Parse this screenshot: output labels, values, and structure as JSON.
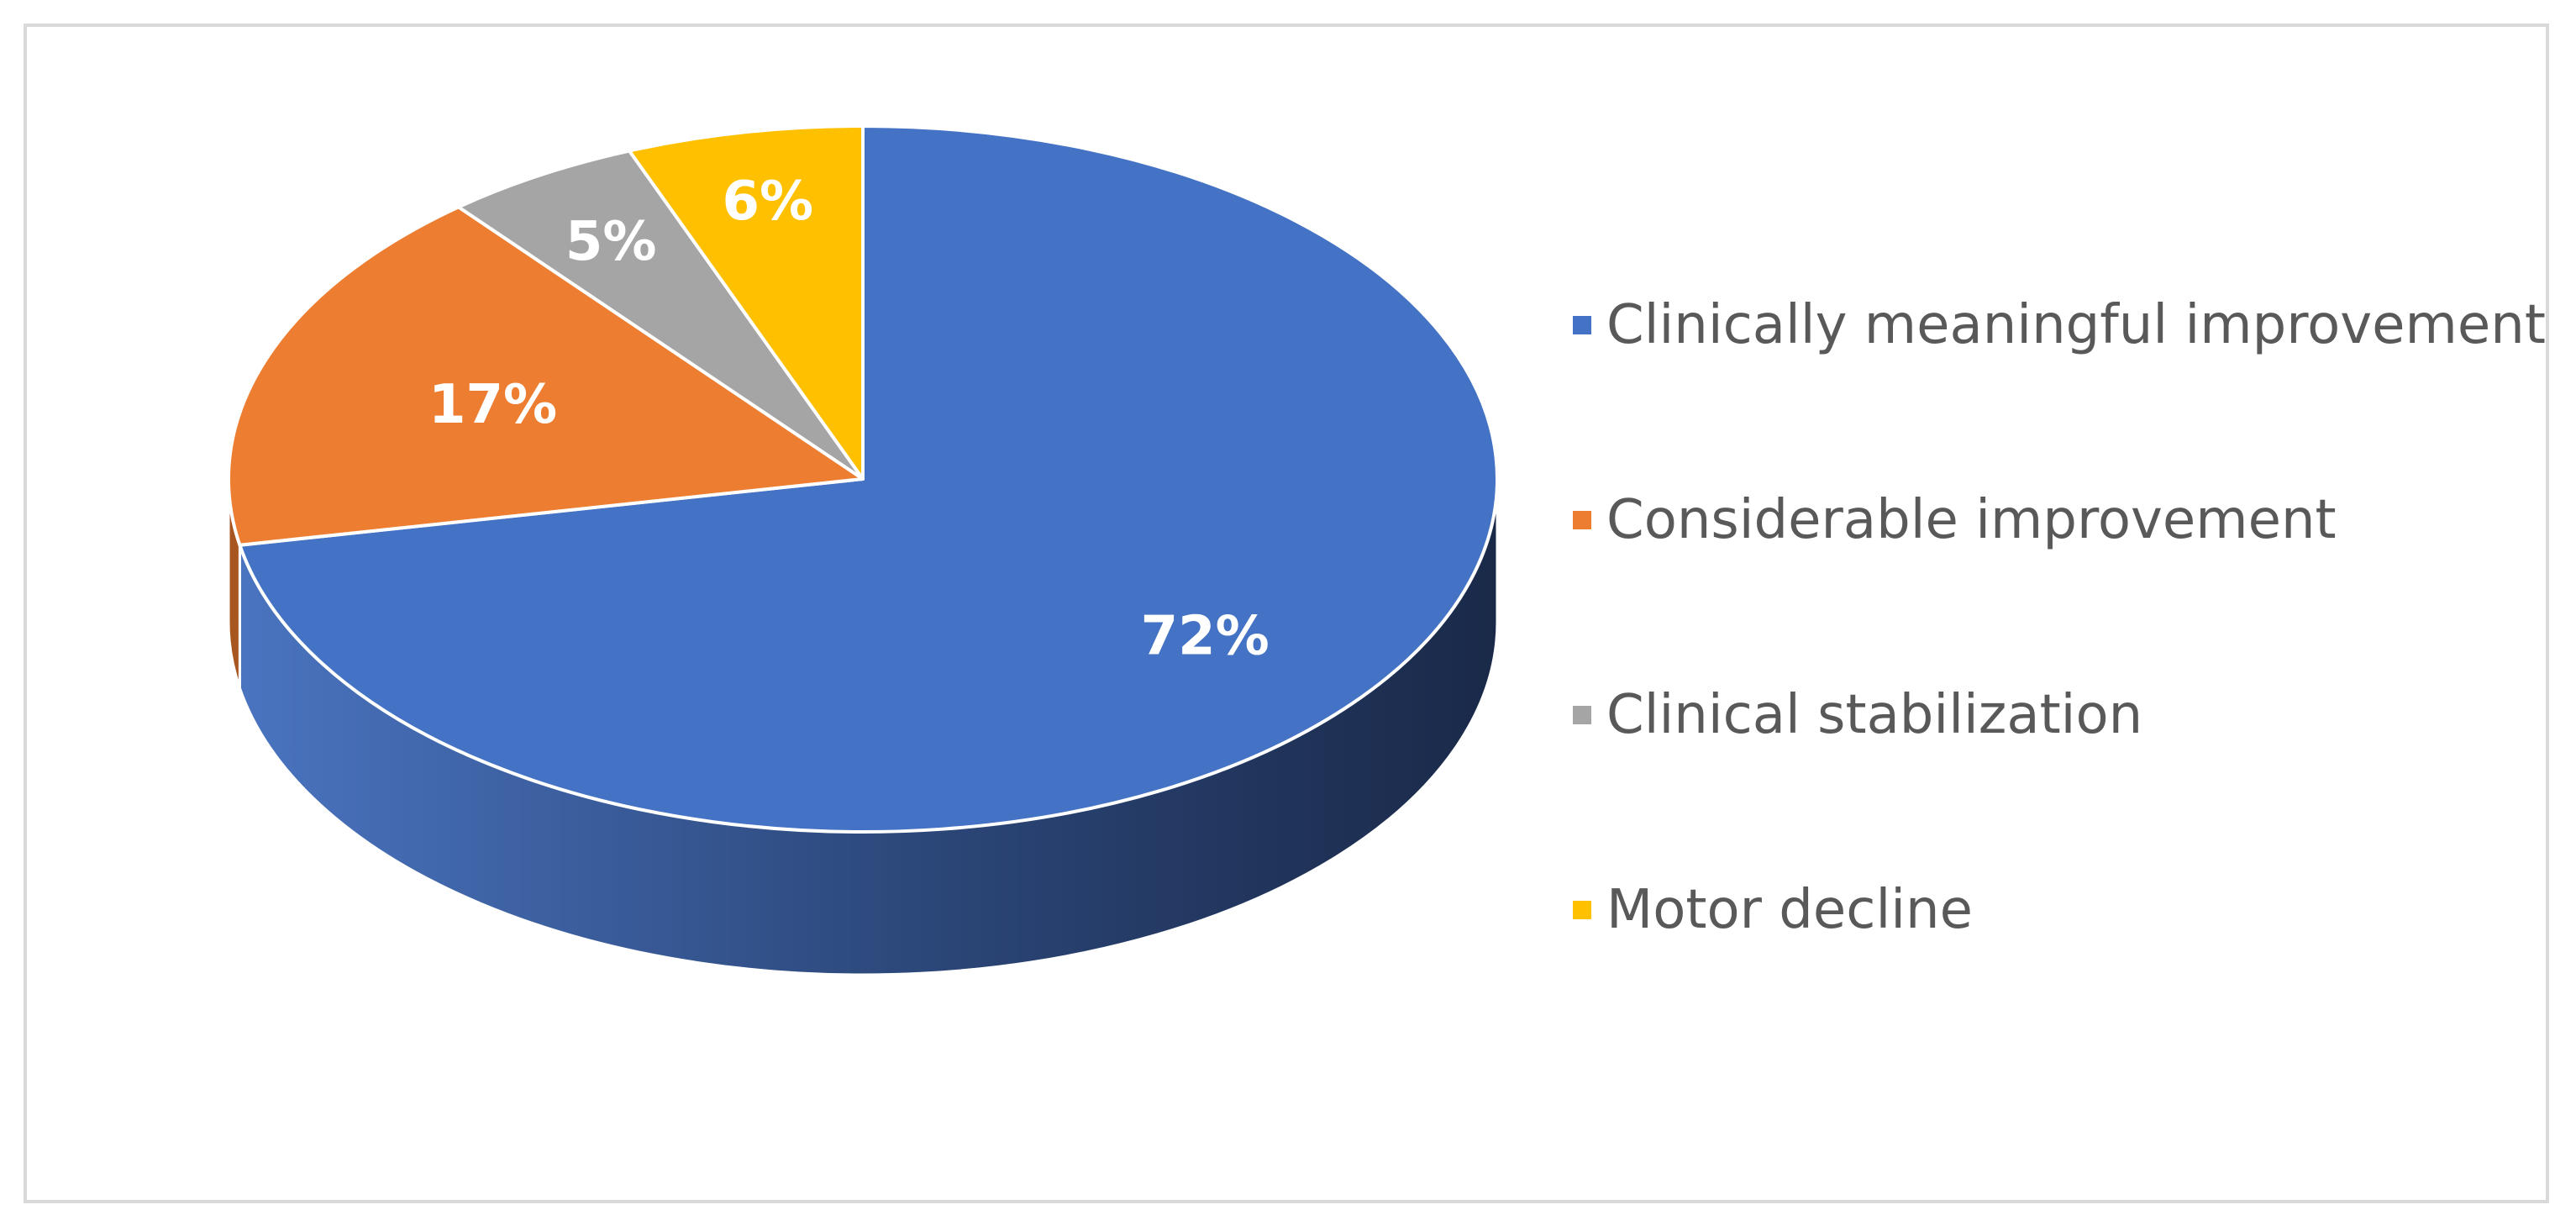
{
  "chart_data": {
    "type": "pie",
    "style": "3d",
    "categories": [
      "Clinically meaningful improvement",
      "Considerable improvement",
      "Clinical stabilization",
      "Motor decline"
    ],
    "values": [
      72,
      17,
      5,
      6
    ],
    "labels": [
      "72%",
      "17%",
      "5%",
      "6%"
    ],
    "colors": [
      "#4472c4",
      "#ed7d31",
      "#a5a5a5",
      "#ffc000"
    ],
    "side_colors": [
      "#2f4f8f",
      "#a8561f",
      "#737373",
      "#b38600"
    ],
    "legend_position": "right"
  }
}
